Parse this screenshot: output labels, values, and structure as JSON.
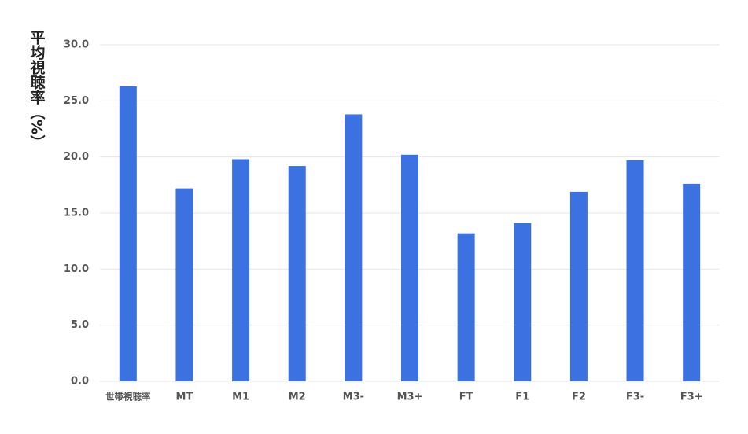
{
  "chart_data": {
    "type": "bar",
    "y_label": "平均視聴率（%）",
    "categories": [
      "世帯視聴率",
      "MT",
      "M1",
      "M2",
      "M3-",
      "M3+",
      "FT",
      "F1",
      "F2",
      "F3-",
      "F3+"
    ],
    "values": [
      26.3,
      17.2,
      19.8,
      19.2,
      23.8,
      20.2,
      13.2,
      14.1,
      16.9,
      19.7,
      17.6
    ],
    "color": "#3b71e0",
    "ylim": [
      0,
      30
    ],
    "yticks": [
      {
        "value": 0,
        "label": "0.0"
      },
      {
        "value": 5,
        "label": "5.0"
      },
      {
        "value": 10,
        "label": "10.0"
      },
      {
        "value": 15,
        "label": "15.0"
      },
      {
        "value": 20,
        "label": "20.0"
      },
      {
        "value": 25,
        "label": "25.0"
      },
      {
        "value": 30,
        "label": "30.0"
      }
    ],
    "grid": true
  }
}
